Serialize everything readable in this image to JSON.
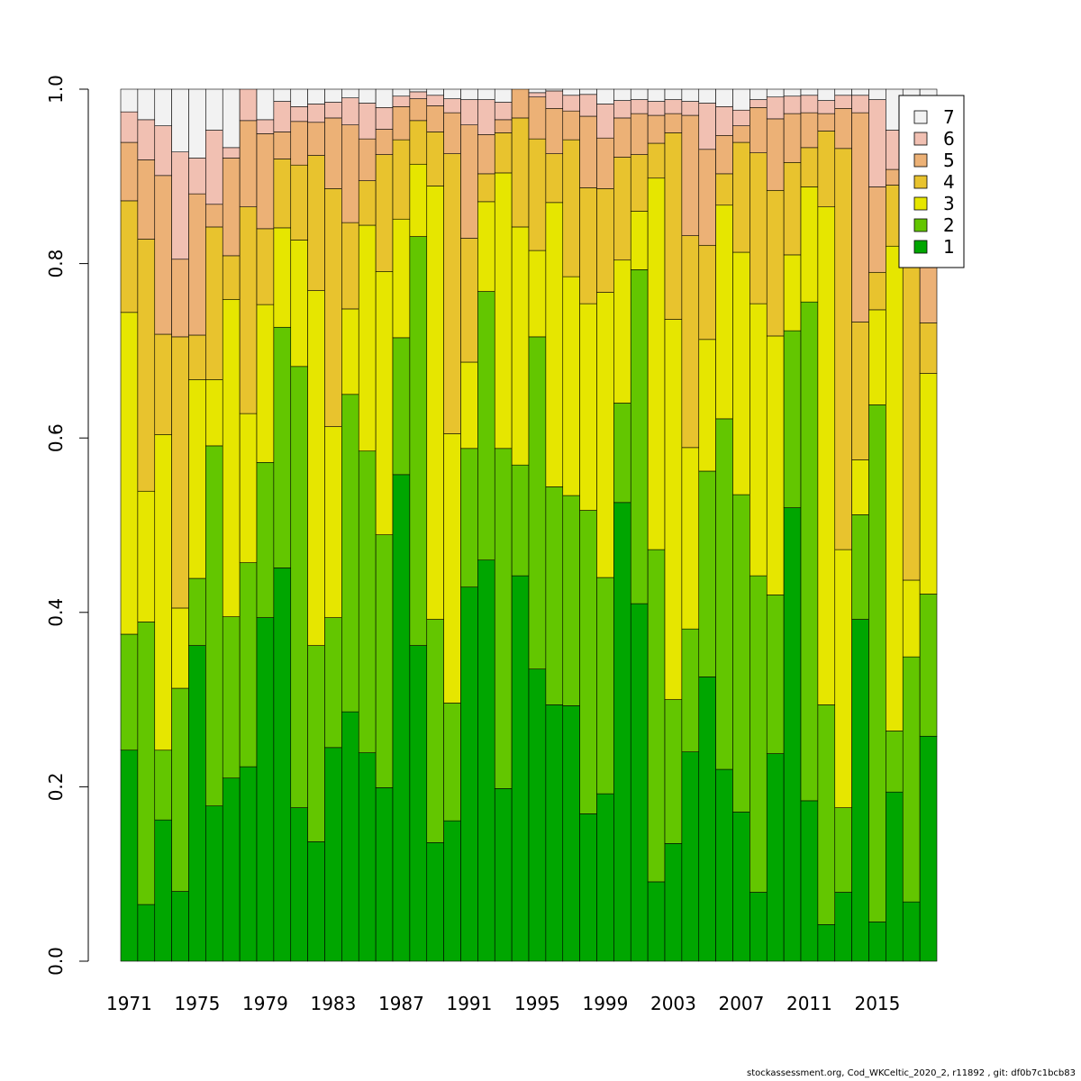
{
  "chart_data": {
    "type": "bar",
    "stacked": true,
    "title": "",
    "xlabel": "",
    "ylabel": "",
    "ylim": [
      0,
      1
    ],
    "yticks": [
      "0.0",
      "0.2",
      "0.4",
      "0.6",
      "0.8",
      "1.0"
    ],
    "yticks_values": [
      0,
      0.2,
      0.4,
      0.6,
      0.8,
      1.0
    ],
    "grid": false,
    "legend_position": "top-right",
    "categories": [
      1971,
      1972,
      1973,
      1974,
      1975,
      1976,
      1977,
      1978,
      1979,
      1980,
      1981,
      1982,
      1983,
      1984,
      1985,
      1986,
      1987,
      1988,
      1989,
      1990,
      1991,
      1992,
      1993,
      1994,
      1995,
      1996,
      1997,
      1998,
      1999,
      2000,
      2001,
      2002,
      2003,
      2004,
      2005,
      2006,
      2007,
      2008,
      2009,
      2010,
      2011,
      2012,
      2013,
      2014,
      2015,
      2016,
      2017,
      2018
    ],
    "xtick_labels": [
      "1971",
      "1975",
      "1979",
      "1983",
      "1987",
      "1991",
      "1995",
      "1999",
      "2003",
      "2007",
      "2011",
      "2015"
    ],
    "series": [
      {
        "name": "1",
        "color": "#00a600",
        "values": [
          0.242,
          0.065,
          0.162,
          0.08,
          0.362,
          0.178,
          0.21,
          0.223,
          0.394,
          0.451,
          0.176,
          0.137,
          0.245,
          0.286,
          0.239,
          0.199,
          0.558,
          0.362,
          0.136,
          0.161,
          0.429,
          0.46,
          0.198,
          0.442,
          0.335,
          0.294,
          0.293,
          0.169,
          0.192,
          0.526,
          0.41,
          0.091,
          0.135,
          0.24,
          0.326,
          0.22,
          0.171,
          0.079,
          0.238,
          0.52,
          0.184,
          0.042,
          0.079,
          0.392,
          0.045,
          0.194,
          0.068,
          0.258
        ]
      },
      {
        "name": "2",
        "color": "#63c600",
        "values": [
          0.133,
          0.324,
          0.08,
          0.233,
          0.077,
          0.413,
          0.185,
          0.234,
          0.178,
          0.276,
          0.506,
          0.225,
          0.149,
          0.364,
          0.346,
          0.29,
          0.157,
          0.469,
          0.256,
          0.135,
          0.159,
          0.308,
          0.39,
          0.127,
          0.381,
          0.25,
          0.241,
          0.348,
          0.248,
          0.114,
          0.383,
          0.381,
          0.165,
          0.141,
          0.236,
          0.402,
          0.364,
          0.363,
          0.182,
          0.203,
          0.572,
          0.252,
          0.097,
          0.12,
          0.593,
          0.07,
          0.281,
          0.163
        ]
      },
      {
        "name": "3",
        "color": "#e6e600",
        "values": [
          0.369,
          0.15,
          0.362,
          0.092,
          0.228,
          0.076,
          0.364,
          0.171,
          0.181,
          0.114,
          0.145,
          0.407,
          0.219,
          0.098,
          0.259,
          0.302,
          0.136,
          0.083,
          0.497,
          0.309,
          0.099,
          0.103,
          0.316,
          0.273,
          0.099,
          0.326,
          0.251,
          0.237,
          0.327,
          0.164,
          0.067,
          0.426,
          0.436,
          0.208,
          0.151,
          0.245,
          0.278,
          0.312,
          0.297,
          0.087,
          0.132,
          0.571,
          0.296,
          0.063,
          0.109,
          0.556,
          0.088,
          0.253
        ]
      },
      {
        "name": "4",
        "color": "#e8c32e",
        "values": [
          0.128,
          0.289,
          0.115,
          0.311,
          0.051,
          0.175,
          0.05,
          0.237,
          0.087,
          0.079,
          0.086,
          0.155,
          0.273,
          0.099,
          0.051,
          0.134,
          0.091,
          0.05,
          0.062,
          0.321,
          0.142,
          0.032,
          0.046,
          0.125,
          0.128,
          0.056,
          0.157,
          0.133,
          0.119,
          0.118,
          0.065,
          0.04,
          0.214,
          0.243,
          0.108,
          0.036,
          0.126,
          0.173,
          0.167,
          0.106,
          0.045,
          0.087,
          0.46,
          0.158,
          0.043,
          0.07,
          0.38,
          0.058
        ]
      },
      {
        "name": "5",
        "color": "#ecb176",
        "values": [
          0.067,
          0.091,
          0.182,
          0.089,
          0.162,
          0.026,
          0.112,
          0.099,
          0.109,
          0.031,
          0.05,
          0.038,
          0.081,
          0.112,
          0.048,
          0.029,
          0.038,
          0.025,
          0.03,
          0.047,
          0.13,
          0.045,
          0.015,
          0.124,
          0.048,
          0.052,
          0.033,
          0.082,
          0.058,
          0.045,
          0.047,
          0.032,
          0.022,
          0.138,
          0.11,
          0.044,
          0.019,
          0.052,
          0.082,
          0.056,
          0.04,
          0.02,
          0.046,
          0.24,
          0.098,
          0.018,
          0.1,
          0.2
        ]
      },
      {
        "name": "6",
        "color": "#f1c0b2",
        "values": [
          0.035,
          0.046,
          0.057,
          0.123,
          0.041,
          0.085,
          0.012,
          0.066,
          0.016,
          0.035,
          0.017,
          0.021,
          0.018,
          0.031,
          0.041,
          0.025,
          0.012,
          0.008,
          0.012,
          0.016,
          0.029,
          0.04,
          0.02,
          0.006,
          0.005,
          0.02,
          0.018,
          0.025,
          0.039,
          0.02,
          0.016,
          0.016,
          0.016,
          0.016,
          0.053,
          0.033,
          0.018,
          0.009,
          0.025,
          0.02,
          0.02,
          0.015,
          0.015,
          0.02,
          0.1,
          0.045,
          0.04,
          0.04
        ]
      },
      {
        "name": "7",
        "color": "#f2f2f2",
        "values": [
          0.026,
          0.035,
          0.042,
          0.072,
          0.079,
          0.047,
          0.067,
          0.037,
          0.035,
          0.014,
          0.02,
          0.017,
          0.015,
          0.01,
          0.016,
          0.021,
          0.008,
          0.003,
          0.007,
          0.011,
          0.012,
          0.012,
          0.015,
          0.003,
          0.004,
          0.002,
          0.007,
          0.006,
          0.017,
          0.013,
          0.012,
          0.014,
          0.012,
          0.014,
          0.016,
          0.02,
          0.024,
          0.012,
          0.009,
          0.008,
          0.007,
          0.013,
          0.007,
          0.007,
          0.012,
          0.047,
          0.043,
          0.028
        ]
      }
    ]
  },
  "footer": "stockassessment.org, Cod_WKCeltic_2020_2, r11892 , git: df0b7c1bcb83"
}
